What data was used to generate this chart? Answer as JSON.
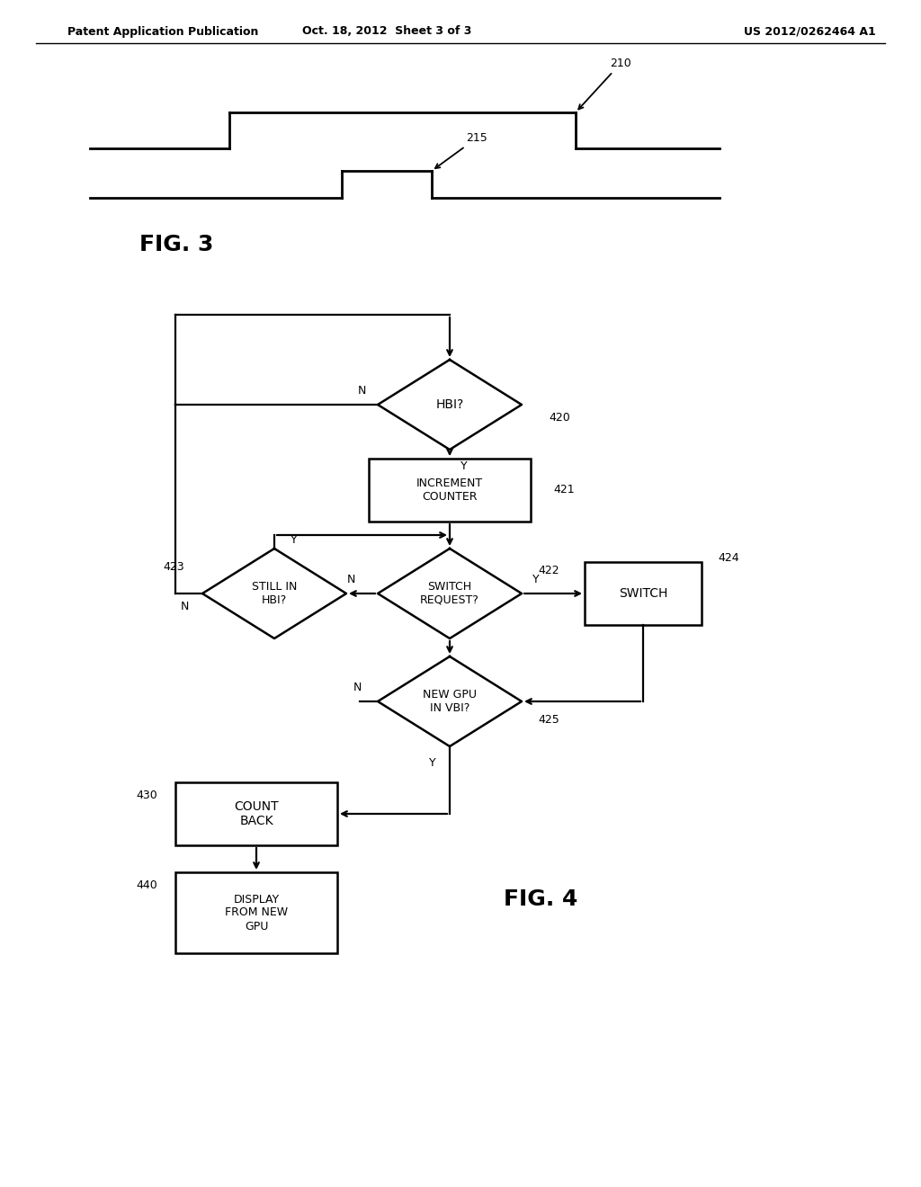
{
  "bg_color": "#ffffff",
  "header_left": "Patent Application Publication",
  "header_center": "Oct. 18, 2012  Sheet 3 of 3",
  "header_right": "US 2012/0262464 A1",
  "fig3_label": "FIG. 3",
  "fig4_label": "FIG. 4",
  "signal1_label": "210",
  "signal2_label": "215",
  "label_420": "420",
  "label_421": "421",
  "label_422": "422",
  "label_423": "423",
  "label_424": "424",
  "label_425": "425",
  "label_430": "430",
  "label_440": "440"
}
